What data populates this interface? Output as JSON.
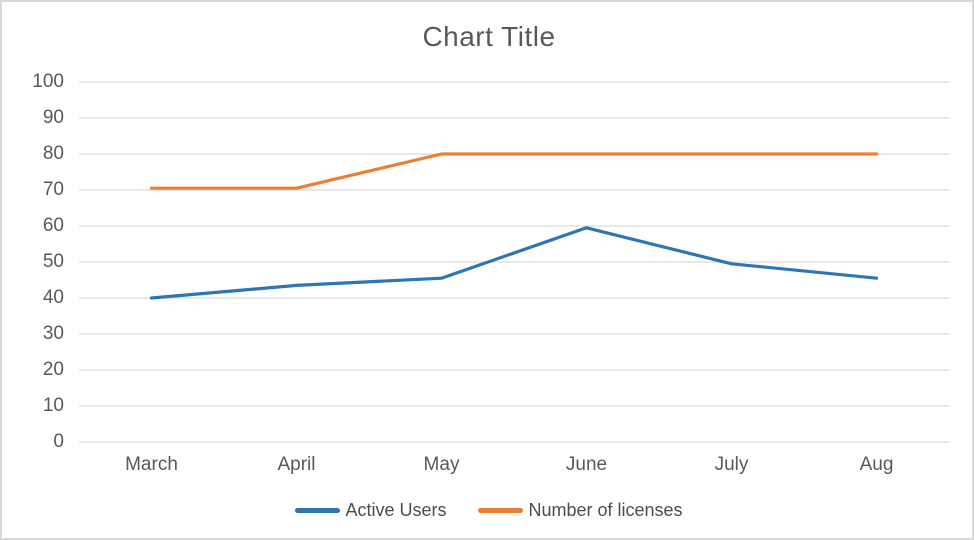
{
  "window": {
    "background": "#ffffff",
    "frame_border_color": "#d8d8d8"
  },
  "chart_data": {
    "type": "line",
    "title": "Chart Title",
    "categories": [
      "March",
      "April",
      "May",
      "June",
      "July",
      "Aug"
    ],
    "series": [
      {
        "name": "Active Users",
        "color": "#2e75b6",
        "values": [
          40,
          43.5,
          45.5,
          59.5,
          49.5,
          45.5
        ]
      },
      {
        "name": "Number of licenses",
        "color": "#ed7d31",
        "values": [
          70.5,
          70.5,
          80,
          80,
          80,
          80
        ]
      }
    ],
    "xlabel": "",
    "ylabel": "",
    "ylim": [
      0,
      100
    ],
    "ytick_step": 10,
    "yticks": [
      0,
      10,
      20,
      30,
      40,
      50,
      60,
      70,
      80,
      90,
      100
    ],
    "grid": "horizontal",
    "gridline_color": "#d9d9d9",
    "tick_label_color": "#595959",
    "title_color": "#595959",
    "legend_position": "bottom"
  }
}
